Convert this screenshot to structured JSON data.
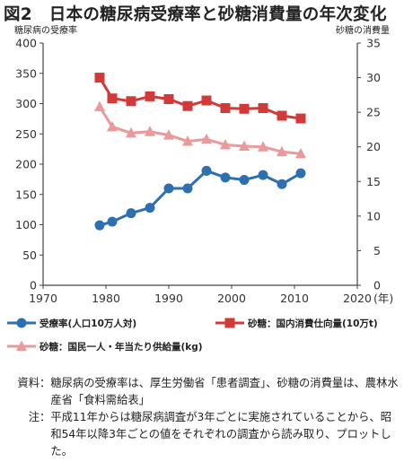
{
  "title": "図2　日本の糖尿病受療率と砂糖消費量の年次変化",
  "chart_data": {
    "type": "line",
    "ylabel_left": "糖尿病の受療率",
    "ylabel_right": "砂糖の消費量",
    "xunit": "(年)",
    "xlim": [
      1970,
      2020
    ],
    "x_ticks": [
      1970,
      1980,
      1990,
      2000,
      2010,
      2020
    ],
    "ylim_left": [
      0,
      400
    ],
    "y_ticks_left": [
      0,
      50,
      100,
      150,
      200,
      250,
      300,
      350,
      400
    ],
    "ylim_right": [
      0,
      35
    ],
    "y_ticks_right": [
      0,
      5,
      10,
      15,
      20,
      25,
      30,
      35
    ],
    "grid": false,
    "series": [
      {
        "name": "受療率(人口10万人対)",
        "axis": "left",
        "color": "#2e6fb0",
        "marker": "circle",
        "x": [
          1979,
          1981,
          1984,
          1987,
          1990,
          1993,
          1996,
          1999,
          2002,
          2005,
          2008,
          2011
        ],
        "values": [
          99,
          105,
          119,
          128,
          160,
          160,
          189,
          178,
          174,
          182,
          167,
          185
        ]
      },
      {
        "name": "砂糖：国内消費仕向量(10万t)",
        "axis": "right",
        "color": "#d23a3a",
        "marker": "square",
        "x": [
          1979,
          1981,
          1984,
          1987,
          1990,
          1993,
          1996,
          1999,
          2002,
          2005,
          2008,
          2011
        ],
        "values": [
          30.0,
          27.0,
          26.6,
          27.3,
          26.9,
          25.9,
          26.7,
          25.6,
          25.5,
          25.6,
          24.5,
          24.1
        ]
      },
      {
        "name": "砂糖：国民一人・年当たり供給量(kg)",
        "axis": "right",
        "color": "#eb9a9c",
        "marker": "triangle",
        "x": [
          1979,
          1981,
          1984,
          1987,
          1990,
          1993,
          1996,
          1999,
          2002,
          2005,
          2008,
          2011
        ],
        "values": [
          25.8,
          22.9,
          22.0,
          22.2,
          21.7,
          20.8,
          21.1,
          20.3,
          20.1,
          20.0,
          19.3,
          19.0
        ]
      }
    ],
    "legend": [
      {
        "label": "受療率(人口10万人対)",
        "series": 0
      },
      {
        "label": "砂糖：国内消費仕向量(10万t)",
        "series": 1
      },
      {
        "label": "砂糖：国民一人・年当たり供給量(kg)",
        "series": 2
      }
    ],
    "legend_position": "bottom"
  },
  "notes": [
    {
      "key": "資料",
      "text": "糖尿病の受療率は、厚生労働省「患者調査」、砂糖の消費量は、農林水産省「食料需給表」"
    },
    {
      "key": "注",
      "text": "平成11年からは糖尿病調査が3年ごとに実施されていることから、昭和54年以降3年ごとの値をそれぞれの調査から読み取り、プロットした。"
    }
  ]
}
